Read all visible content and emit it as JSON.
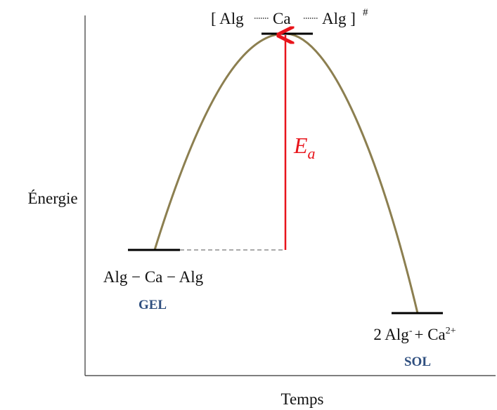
{
  "axes": {
    "y_label": "Énergie",
    "x_label": "Temps"
  },
  "transition_state": {
    "parts": [
      "[ Alg",
      "Ca",
      "Alg ]"
    ],
    "superscript": "#"
  },
  "reactant": {
    "label": "Alg − Ca − Alg",
    "state": "GEL"
  },
  "product": {
    "label_parts": [
      "2 Alg",
      "-",
      "+ Ca",
      "2+"
    ],
    "state": "SOL"
  },
  "activation": {
    "symbol": "E",
    "subscript": "a"
  }
}
